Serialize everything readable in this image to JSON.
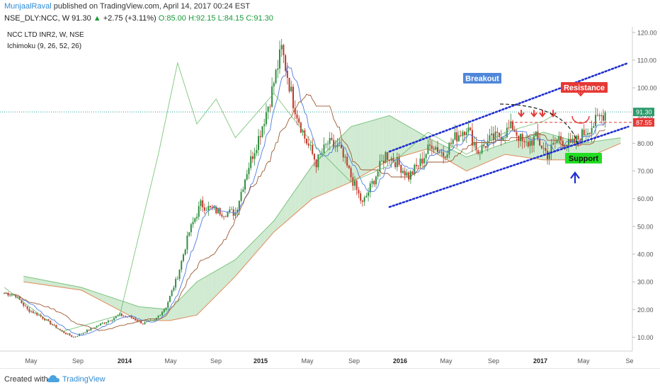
{
  "header": {
    "username": "MunjaalRaval",
    "published_text": "published on TradingView.com, April 14, 2017 00:24 EST",
    "symbol": "NSE_DLY:NCC, W",
    "last": "91.30",
    "change": "+2.75 (+3.11%)",
    "open": "O:85.00",
    "high": "H:92.15",
    "low": "L:84.15",
    "close": "C:91.30"
  },
  "legend": {
    "title": "NCC LTD INR2, W, NSE",
    "indicator": "Ichimoku (9, 26, 52, 26)"
  },
  "footer": {
    "created_with": "Created with",
    "brand": "TradingView"
  },
  "colors": {
    "candle_up": "#2e8f3e",
    "candle_down": "#c0392b",
    "cloud_bull": "#c8e6c9",
    "cloud_bear": "#f8c9c6",
    "trendline": "#1f2ecf",
    "breakout_box": "#4f86d9",
    "resistance_box": "#e53935",
    "support_box": "#22dd22"
  },
  "chart_data": {
    "type": "candlestick",
    "ylim": [
      5,
      122
    ],
    "y_ticks": [
      "120.00",
      "110.00",
      "100.00",
      "90.00",
      "80.00",
      "70.00",
      "60.00",
      "50.00",
      "40.00",
      "30.00",
      "20.00",
      "10.00"
    ],
    "x_ticks": [
      "May",
      "Sep",
      "2014",
      "May",
      "Sep",
      "2015",
      "May",
      "Sep",
      "2016",
      "May",
      "Sep",
      "2017",
      "May",
      "Se"
    ],
    "price_labels": [
      {
        "value": 91.3,
        "text": "91.30"
      },
      {
        "value": 87.55,
        "text": "87.55"
      }
    ],
    "annotations": {
      "breakout": "Breakout",
      "resistance": "Resistance",
      "support": "Support"
    },
    "close_path": [
      [
        0,
        26
      ],
      [
        6,
        25
      ],
      [
        12,
        20
      ],
      [
        18,
        18
      ],
      [
        24,
        15
      ],
      [
        30,
        12
      ],
      [
        36,
        10
      ],
      [
        42,
        12
      ],
      [
        48,
        14
      ],
      [
        54,
        16
      ],
      [
        60,
        18
      ],
      [
        66,
        17
      ],
      [
        72,
        15
      ],
      [
        78,
        16
      ],
      [
        84,
        21
      ],
      [
        90,
        32
      ],
      [
        96,
        48
      ],
      [
        102,
        58
      ],
      [
        108,
        56
      ],
      [
        114,
        55
      ],
      [
        120,
        55
      ],
      [
        126,
        70
      ],
      [
        132,
        82
      ],
      [
        138,
        96
      ],
      [
        144,
        114
      ],
      [
        150,
        95
      ],
      [
        156,
        82
      ],
      [
        162,
        73
      ],
      [
        168,
        80
      ],
      [
        174,
        78
      ],
      [
        180,
        68
      ],
      [
        186,
        58
      ],
      [
        192,
        67
      ],
      [
        198,
        76
      ],
      [
        204,
        73
      ],
      [
        210,
        68
      ],
      [
        216,
        73
      ],
      [
        222,
        80
      ],
      [
        228,
        76
      ],
      [
        234,
        82
      ],
      [
        240,
        86
      ],
      [
        246,
        77
      ],
      [
        252,
        81
      ],
      [
        258,
        83
      ],
      [
        264,
        86
      ],
      [
        270,
        79
      ],
      [
        276,
        82
      ],
      [
        282,
        76
      ],
      [
        288,
        82
      ],
      [
        294,
        79
      ],
      [
        300,
        83
      ],
      [
        306,
        87
      ],
      [
        312,
        91.3
      ]
    ],
    "ichimoku": {
      "span_a": [
        [
          10,
          32
        ],
        [
          40,
          28
        ],
        [
          70,
          21
        ],
        [
          86,
          20
        ],
        [
          100,
          30
        ],
        [
          120,
          38
        ],
        [
          140,
          52
        ],
        [
          160,
          72
        ],
        [
          180,
          86
        ],
        [
          200,
          90
        ],
        [
          220,
          82
        ],
        [
          240,
          75
        ],
        [
          260,
          80
        ],
        [
          280,
          84
        ],
        [
          300,
          80
        ],
        [
          320,
          82
        ]
      ],
      "span_b": [
        [
          10,
          30
        ],
        [
          40,
          27
        ],
        [
          70,
          16
        ],
        [
          86,
          16
        ],
        [
          100,
          18
        ],
        [
          120,
          32
        ],
        [
          140,
          48
        ],
        [
          160,
          60
        ],
        [
          180,
          66
        ],
        [
          200,
          74
        ],
        [
          220,
          78
        ],
        [
          240,
          70
        ],
        [
          260,
          76
        ],
        [
          280,
          74
        ],
        [
          300,
          74
        ],
        [
          320,
          80
        ]
      ],
      "lagging_span": [
        [
          0,
          28
        ],
        [
          30,
          12
        ],
        [
          60,
          18
        ],
        [
          80,
          76
        ],
        [
          90,
          109
        ],
        [
          100,
          87
        ],
        [
          110,
          96
        ],
        [
          120,
          82
        ],
        [
          140,
          98
        ],
        [
          160,
          80
        ],
        [
          180,
          66
        ],
        [
          200,
          72
        ],
        [
          220,
          84
        ],
        [
          240,
          76
        ],
        [
          260,
          84
        ],
        [
          280,
          88
        ],
        [
          285,
          90
        ]
      ]
    },
    "trendlines": [
      {
        "name": "upper channel",
        "from": [
          200,
          77
        ],
        "to": [
          324,
          109
        ]
      },
      {
        "name": "lower channel",
        "from": [
          200,
          57
        ],
        "to": [
          324,
          86
        ]
      }
    ],
    "horizontal_levels": [
      {
        "value": 87.55,
        "style": "dashed",
        "color": "#e53935"
      },
      {
        "value": 91.3,
        "style": "dotted",
        "color": "#26a69a"
      }
    ]
  }
}
